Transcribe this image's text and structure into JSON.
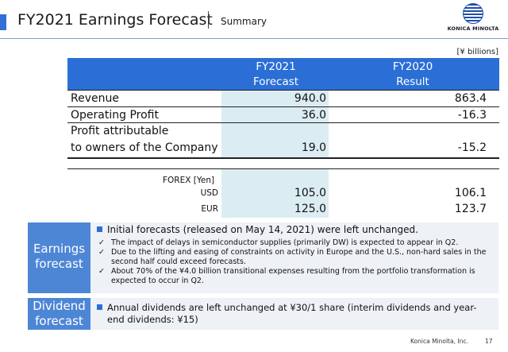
{
  "header": {
    "title": "FY2021 Earnings Forecast",
    "subtitle": "Summary",
    "logo_text": "KONICA MINOLTA",
    "logo_icon": "konica-minolta-globe-icon"
  },
  "unit_note": "[¥ billions]",
  "table": {
    "col_forecast": [
      "FY2021",
      "Forecast"
    ],
    "col_result": [
      "FY2020",
      "Result"
    ],
    "rows": [
      {
        "label": "Revenue",
        "forecast": "940.0",
        "result": "863.4"
      },
      {
        "label": "Operating Profit",
        "forecast": "36.0",
        "result": "-16.3"
      },
      {
        "label": "Profit attributable",
        "label2": "to owners of the Company",
        "forecast": "19.0",
        "result": "-15.2"
      }
    ],
    "forex_header": "FOREX [Yen]",
    "forex": [
      {
        "label": "USD",
        "forecast": "105.0",
        "result": "106.1"
      },
      {
        "label": "EUR",
        "forecast": "125.0",
        "result": "123.7"
      }
    ]
  },
  "earnings_panel": {
    "label_line1": "Earnings",
    "label_line2": "forecast",
    "main": "Initial forecasts (released on May 14, 2021) were left unchanged.",
    "checks": [
      "The impact of delays in semiconductor supplies (primarily DW) is expected to appear in Q2.",
      "Due to the lifting and easing of constraints on activity in Europe and the U.S., non-hard sales in the second half could exceed forecasts.",
      "About 70% of the ¥4.0 billion transitional expenses resulting from the portfolio transformation is expected to occur in Q2."
    ]
  },
  "dividend_panel": {
    "label_line1": "Dividend",
    "label_line2": "forecast",
    "main_line1": "Annual dividends are left unchanged at ¥30/1 share (interim dividends and year-",
    "main_line2": "end dividends: ¥15)"
  },
  "footer": {
    "company": "Konica Minolta, Inc.",
    "page": "17"
  },
  "colors": {
    "accent": "#2b6fd6",
    "panel_label": "#4e86d6",
    "forecast_shade": "#dcecf3",
    "panel_bg": "#eef1f6"
  }
}
